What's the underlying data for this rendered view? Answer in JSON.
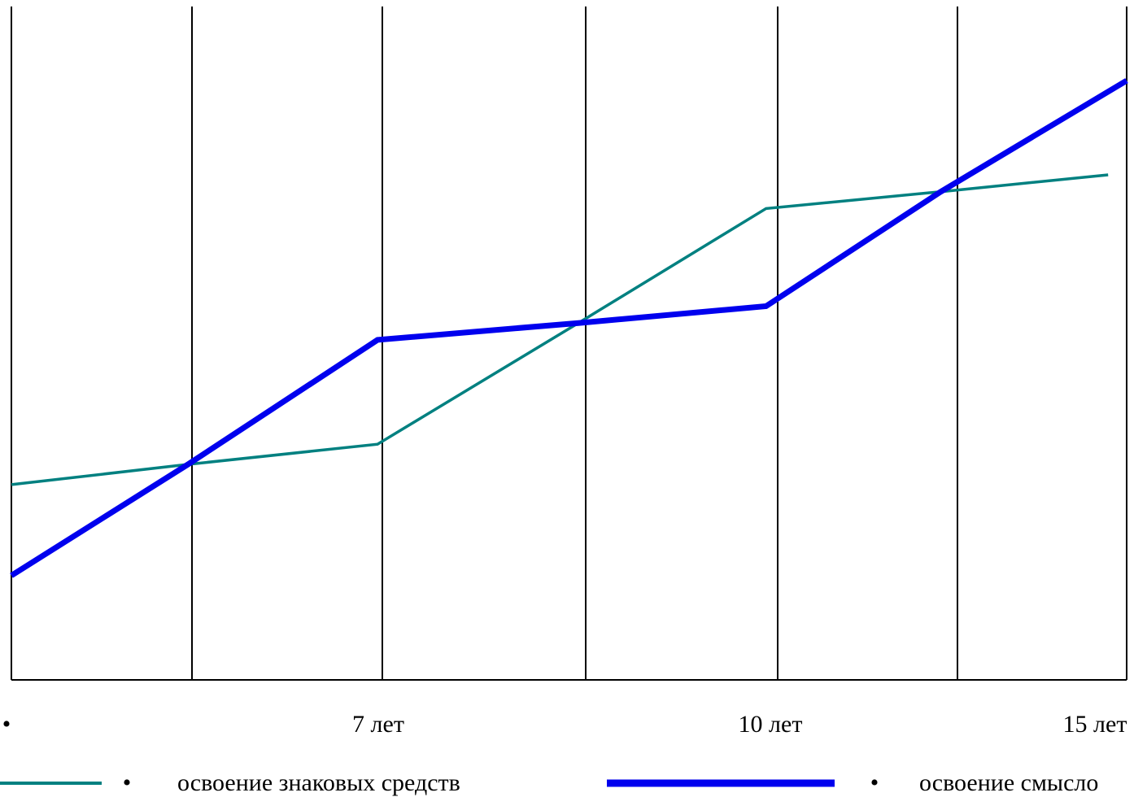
{
  "chart_data": {
    "type": "line",
    "title": "",
    "xlabel": "",
    "ylabel": "",
    "grid": "vertical",
    "legend_position": "bottom",
    "categories": [
      "",
      "",
      "7 лет",
      "",
      "10 лет",
      "",
      "15 лет"
    ],
    "tick_labels": [
      "•",
      "7 лет",
      "10 лет",
      "15 лет"
    ],
    "ylim": [
      0,
      100
    ],
    "series": [
      {
        "name": "освоение знаковых средств",
        "color": "#008080",
        "stroke": "thin",
        "values": [
          29,
          32,
          35,
          53,
          70,
          72.5,
          75
        ],
        "x": [
          0,
          0.95,
          1.97,
          3.05,
          4.06,
          5.0,
          5.9
        ]
      },
      {
        "name": "освоение смысло",
        "color": "#0000ee",
        "stroke": "thick",
        "values": [
          15.5,
          32,
          50.5,
          53,
          55.5,
          72.5,
          89
        ],
        "x": [
          0,
          0.95,
          1.97,
          3.05,
          4.06,
          5.0,
          6.0
        ]
      }
    ]
  },
  "legend": {
    "bullet": "•",
    "items": [
      {
        "label": "освоение знаковых средств",
        "color": "#008080"
      },
      {
        "label": "освоение смысло",
        "color": "#0000ee"
      }
    ]
  }
}
